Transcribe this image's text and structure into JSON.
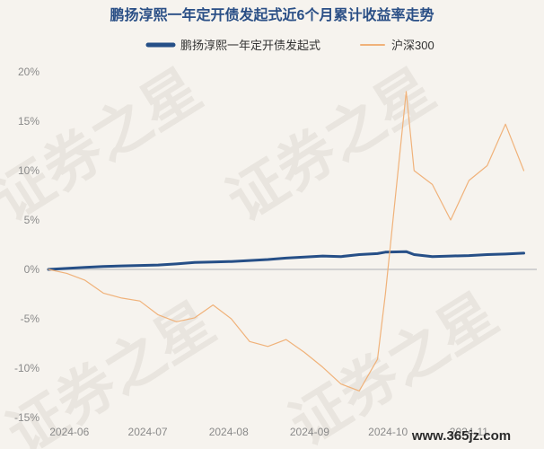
{
  "chart_data": {
    "type": "line",
    "title": "鹏扬淳熙一年定开债发起式近6个月累计收益率走势",
    "xlabel": "",
    "ylabel": "",
    "ylim": [
      -15,
      20
    ],
    "yticks": [
      -15,
      -10,
      -5,
      0,
      5,
      10,
      15,
      20
    ],
    "ytick_labels": [
      "-15%",
      "-10%",
      "-5%",
      "0%",
      "5%",
      "10%",
      "15%",
      "20%"
    ],
    "xticks": [
      "2024-06",
      "2024-07",
      "2024-08",
      "2024-09",
      "2024-10",
      "2024-11"
    ],
    "xtick_labels": [
      "2024-06",
      "2024-07",
      "2024-08",
      "2024-09",
      "2024-10",
      "2024-11"
    ],
    "grid": false,
    "legend_position": "top-center",
    "series": [
      {
        "name": "鹏扬淳熙一年定开债发起式",
        "color": "#264f87",
        "points": [
          [
            "2024-05-24",
            0.0
          ],
          [
            "2024-05-31",
            0.1
          ],
          [
            "2024-06-07",
            0.2
          ],
          [
            "2024-06-14",
            0.3
          ],
          [
            "2024-06-21",
            0.35
          ],
          [
            "2024-06-28",
            0.4
          ],
          [
            "2024-07-05",
            0.45
          ],
          [
            "2024-07-12",
            0.55
          ],
          [
            "2024-07-19",
            0.7
          ],
          [
            "2024-07-26",
            0.75
          ],
          [
            "2024-08-02",
            0.8
          ],
          [
            "2024-08-09",
            0.9
          ],
          [
            "2024-08-16",
            1.0
          ],
          [
            "2024-08-23",
            1.15
          ],
          [
            "2024-08-30",
            1.25
          ],
          [
            "2024-09-06",
            1.35
          ],
          [
            "2024-09-13",
            1.3
          ],
          [
            "2024-09-20",
            1.5
          ],
          [
            "2024-09-27",
            1.6
          ],
          [
            "2024-09-30",
            1.75
          ],
          [
            "2024-10-08",
            1.8
          ],
          [
            "2024-10-11",
            1.5
          ],
          [
            "2024-10-18",
            1.3
          ],
          [
            "2024-10-25",
            1.35
          ],
          [
            "2024-11-01",
            1.4
          ],
          [
            "2024-11-08",
            1.5
          ],
          [
            "2024-11-15",
            1.55
          ],
          [
            "2024-11-22",
            1.65
          ]
        ]
      },
      {
        "name": "沪深300",
        "color": "#f0b27a",
        "points": [
          [
            "2024-05-24",
            0.0
          ],
          [
            "2024-05-31",
            -0.4
          ],
          [
            "2024-06-07",
            -1.1
          ],
          [
            "2024-06-14",
            -2.4
          ],
          [
            "2024-06-21",
            -2.9
          ],
          [
            "2024-06-28",
            -3.2
          ],
          [
            "2024-07-05",
            -4.6
          ],
          [
            "2024-07-12",
            -5.3
          ],
          [
            "2024-07-19",
            -4.9
          ],
          [
            "2024-07-26",
            -3.6
          ],
          [
            "2024-08-02",
            -5.0
          ],
          [
            "2024-08-09",
            -7.3
          ],
          [
            "2024-08-16",
            -7.8
          ],
          [
            "2024-08-23",
            -7.1
          ],
          [
            "2024-08-30",
            -8.4
          ],
          [
            "2024-09-06",
            -9.9
          ],
          [
            "2024-09-13",
            -11.6
          ],
          [
            "2024-09-20",
            -12.3
          ],
          [
            "2024-09-27",
            -9.1
          ],
          [
            "2024-09-30",
            -2.5
          ],
          [
            "2024-10-08",
            18.0
          ],
          [
            "2024-10-11",
            10.0
          ],
          [
            "2024-10-18",
            8.6
          ],
          [
            "2024-10-25",
            5.0
          ],
          [
            "2024-11-01",
            9.0
          ],
          [
            "2024-11-08",
            10.5
          ],
          [
            "2024-11-15",
            14.7
          ],
          [
            "2024-11-22",
            10.0
          ]
        ]
      }
    ]
  },
  "legend": {
    "items": [
      {
        "label": "鹏扬淳熙一年定开债发起式",
        "color": "#264f87"
      },
      {
        "label": "沪深300",
        "color": "#f0b27a"
      }
    ]
  },
  "watermark": {
    "text": "证券之星"
  },
  "site_label": "www.365jz.com"
}
